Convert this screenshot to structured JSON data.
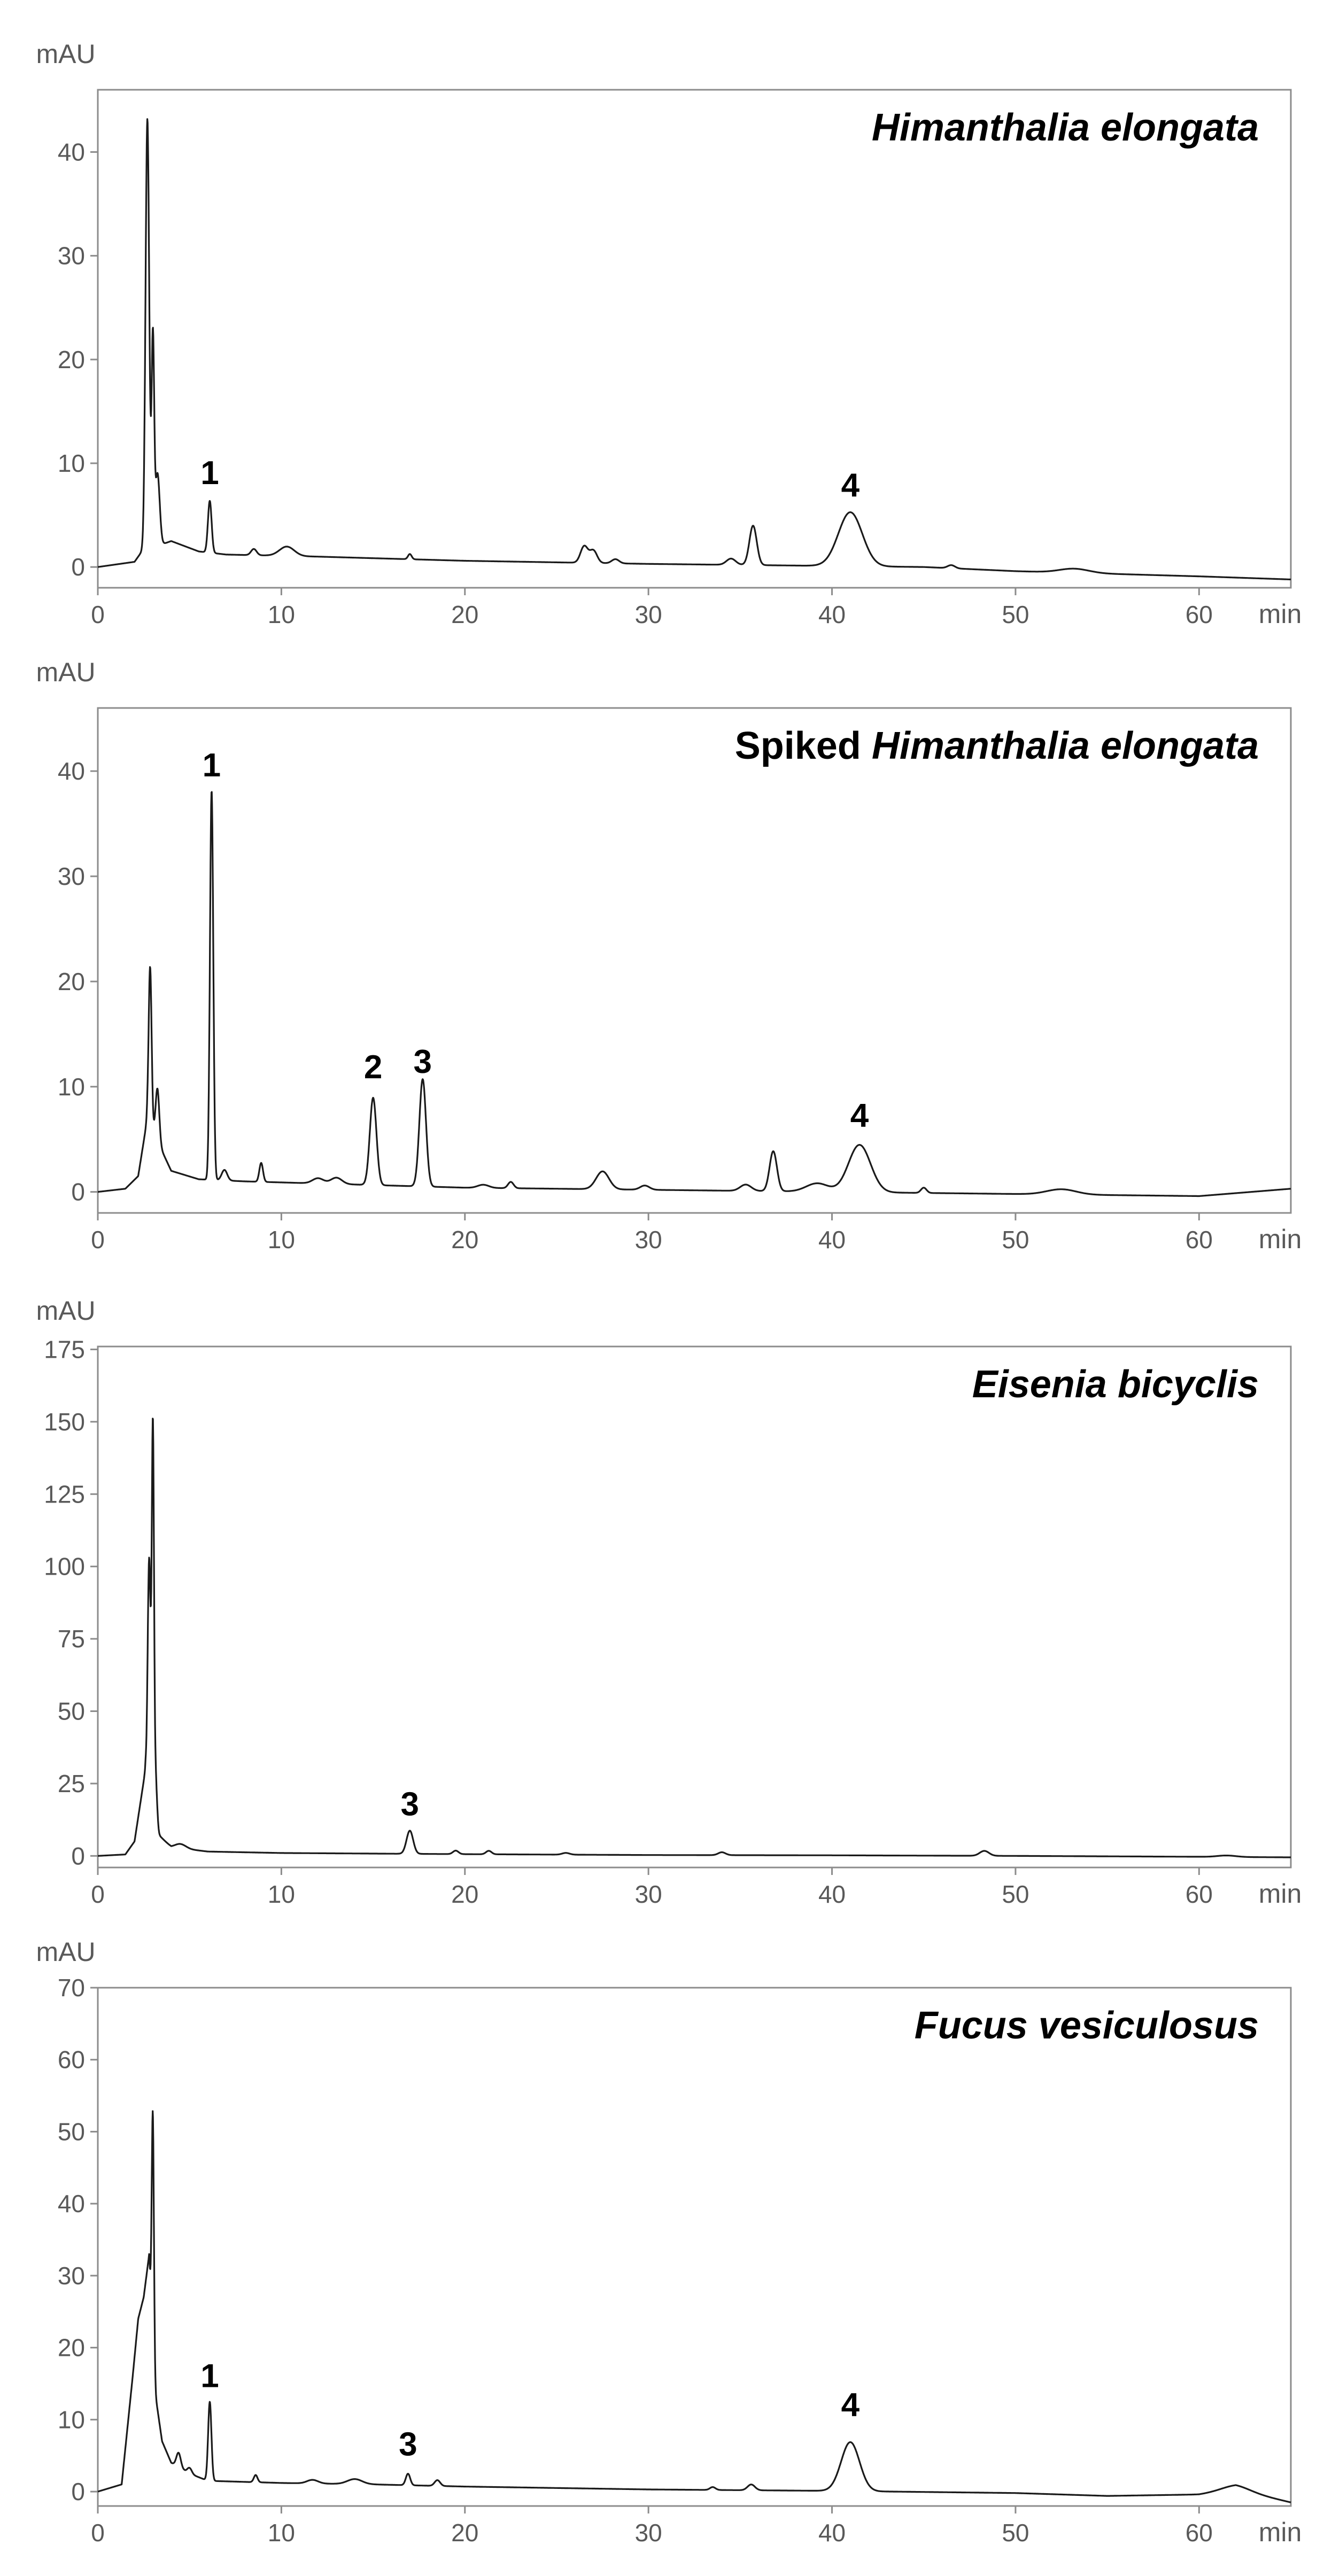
{
  "chart_data": [
    {
      "type": "line",
      "title_parts": [
        {
          "text": "Himanthalia",
          "italic": true
        },
        {
          "text": "elongata",
          "italic": true
        }
      ],
      "ylabel": "mAU",
      "xlabel": "min",
      "xlim": [
        0,
        65
      ],
      "ylim": [
        -2,
        46
      ],
      "xticks": [
        0,
        10,
        20,
        30,
        40,
        50,
        60
      ],
      "yticks": [
        0,
        10,
        20,
        30,
        40
      ],
      "baseline": [
        [
          0,
          0
        ],
        [
          2,
          0.5
        ],
        [
          2.4,
          1.5
        ],
        [
          4,
          2.5
        ],
        [
          5.5,
          1.5
        ],
        [
          7,
          1.2
        ],
        [
          12,
          1.0
        ],
        [
          20,
          0.6
        ],
        [
          30,
          0.3
        ],
        [
          40,
          0.1
        ],
        [
          45,
          0
        ],
        [
          50,
          -0.4
        ],
        [
          60,
          -0.9
        ],
        [
          65,
          -1.2
        ]
      ],
      "peaks": [
        {
          "x": 2.7,
          "h": 41.5,
          "w": 0.1
        },
        {
          "x": 3.0,
          "h": 20,
          "w": 0.07
        },
        {
          "x": 3.25,
          "h": 7,
          "w": 0.12
        },
        {
          "x": 6.1,
          "h": 5,
          "w": 0.1
        },
        {
          "x": 8.5,
          "h": 0.6,
          "w": 0.15
        },
        {
          "x": 10.3,
          "h": 0.9,
          "w": 0.4
        },
        {
          "x": 17.0,
          "h": 0.5,
          "w": 0.1
        },
        {
          "x": 26.5,
          "h": 1.6,
          "w": 0.2
        },
        {
          "x": 27.0,
          "h": 1.2,
          "w": 0.2
        },
        {
          "x": 28.2,
          "h": 0.4,
          "w": 0.2
        },
        {
          "x": 34.5,
          "h": 0.6,
          "w": 0.25
        },
        {
          "x": 35.7,
          "h": 3.8,
          "w": 0.2
        },
        {
          "x": 41.0,
          "h": 5.2,
          "w": 0.65
        },
        {
          "x": 46.5,
          "h": 0.3,
          "w": 0.2
        },
        {
          "x": 53.2,
          "h": 0.4,
          "w": 0.8
        }
      ],
      "peak_labels": [
        {
          "text": "1",
          "x": 6.1,
          "y": 8.0
        },
        {
          "text": "4",
          "x": 41.0,
          "y": 6.8
        }
      ]
    },
    {
      "type": "line",
      "title_parts": [
        {
          "text": "Spiked",
          "italic": false
        },
        {
          "text": "Himanthalia",
          "italic": true
        },
        {
          "text": "elongata",
          "italic": true
        }
      ],
      "ylabel": "mAU",
      "xlabel": "min",
      "xlim": [
        0,
        65
      ],
      "ylim": [
        -2,
        46
      ],
      "xticks": [
        0,
        10,
        20,
        30,
        40,
        50,
        60
      ],
      "yticks": [
        0,
        10,
        20,
        30,
        40
      ],
      "baseline": [
        [
          0,
          0
        ],
        [
          1.5,
          0.3
        ],
        [
          2.2,
          1.5
        ],
        [
          2.7,
          7
        ],
        [
          3.2,
          5
        ],
        [
          4,
          2
        ],
        [
          5.5,
          1.2
        ],
        [
          8,
          1.0
        ],
        [
          12,
          0.8
        ],
        [
          20,
          0.4
        ],
        [
          30,
          0.2
        ],
        [
          40,
          0
        ],
        [
          50,
          -0.2
        ],
        [
          60,
          -0.4
        ],
        [
          65,
          0.3
        ]
      ],
      "peaks": [
        {
          "x": 2.85,
          "h": 15,
          "w": 0.08
        },
        {
          "x": 3.25,
          "h": 5,
          "w": 0.1
        },
        {
          "x": 6.2,
          "h": 37,
          "w": 0.09
        },
        {
          "x": 6.9,
          "h": 1.0,
          "w": 0.15
        },
        {
          "x": 8.9,
          "h": 1.8,
          "w": 0.1
        },
        {
          "x": 12.0,
          "h": 0.5,
          "w": 0.3
        },
        {
          "x": 13.0,
          "h": 0.6,
          "w": 0.3
        },
        {
          "x": 15.0,
          "h": 8.3,
          "w": 0.18
        },
        {
          "x": 17.7,
          "h": 10.2,
          "w": 0.18
        },
        {
          "x": 21.0,
          "h": 0.3,
          "w": 0.3
        },
        {
          "x": 22.5,
          "h": 0.6,
          "w": 0.15
        },
        {
          "x": 27.5,
          "h": 1.7,
          "w": 0.35
        },
        {
          "x": 29.8,
          "h": 0.4,
          "w": 0.25
        },
        {
          "x": 35.3,
          "h": 0.6,
          "w": 0.3
        },
        {
          "x": 36.8,
          "h": 3.8,
          "w": 0.2
        },
        {
          "x": 39.2,
          "h": 0.8,
          "w": 0.6
        },
        {
          "x": 41.5,
          "h": 4.5,
          "w": 0.6
        },
        {
          "x": 45.0,
          "h": 0.5,
          "w": 0.15
        },
        {
          "x": 52.5,
          "h": 0.5,
          "w": 0.8
        }
      ],
      "peak_labels": [
        {
          "text": "1",
          "x": 6.2,
          "y": 39.5
        },
        {
          "text": "2",
          "x": 15.0,
          "y": 10.8
        },
        {
          "text": "3",
          "x": 17.7,
          "y": 11.3
        },
        {
          "text": "4",
          "x": 41.5,
          "y": 6.2
        }
      ]
    },
    {
      "type": "line",
      "title_parts": [
        {
          "text": "Eisenia",
          "italic": true
        },
        {
          "text": "bicyclis",
          "italic": true
        }
      ],
      "ylabel": "mAU",
      "xlabel": "min",
      "xlim": [
        0,
        65
      ],
      "ylim": [
        -4,
        176
      ],
      "xticks": [
        0,
        10,
        20,
        30,
        40,
        50,
        60
      ],
      "yticks": [
        0,
        25,
        50,
        75,
        100,
        125,
        150,
        175
      ],
      "baseline": [
        [
          0,
          0
        ],
        [
          1.5,
          0.5
        ],
        [
          2.0,
          5
        ],
        [
          2.6,
          30
        ],
        [
          3.2,
          8
        ],
        [
          4,
          3
        ],
        [
          6,
          1.5
        ],
        [
          10,
          1.0
        ],
        [
          20,
          0.6
        ],
        [
          30,
          0.3
        ],
        [
          40,
          0.2
        ],
        [
          50,
          0
        ],
        [
          60,
          -0.3
        ],
        [
          65,
          -0.5
        ]
      ],
      "peaks": [
        {
          "x": 2.8,
          "h": 80,
          "w": 0.08
        },
        {
          "x": 3.0,
          "h": 130,
          "w": 0.06
        },
        {
          "x": 3.15,
          "h": 18,
          "w": 0.08
        },
        {
          "x": 4.5,
          "h": 1.5,
          "w": 0.3
        },
        {
          "x": 17.0,
          "h": 8,
          "w": 0.18
        },
        {
          "x": 19.5,
          "h": 1.2,
          "w": 0.15
        },
        {
          "x": 21.3,
          "h": 1.2,
          "w": 0.15
        },
        {
          "x": 25.5,
          "h": 0.6,
          "w": 0.2
        },
        {
          "x": 34.0,
          "h": 1.0,
          "w": 0.2
        },
        {
          "x": 48.3,
          "h": 1.7,
          "w": 0.25
        },
        {
          "x": 61.5,
          "h": 0.5,
          "w": 0.5
        }
      ],
      "peak_labels": [
        {
          "text": "3",
          "x": 17.0,
          "y": 14
        }
      ]
    },
    {
      "type": "line",
      "title_parts": [
        {
          "text": "Fucus",
          "italic": true
        },
        {
          "text": "vesiculosus",
          "italic": true
        }
      ],
      "ylabel": "mAU",
      "xlabel": "min",
      "xlim": [
        0,
        65
      ],
      "ylim": [
        -2,
        70
      ],
      "xticks": [
        0,
        10,
        20,
        30,
        40,
        50,
        60
      ],
      "yticks": [
        0,
        10,
        20,
        30,
        40,
        50,
        60,
        70
      ],
      "baseline": [
        [
          0,
          0
        ],
        [
          1.3,
          1
        ],
        [
          1.9,
          16
        ],
        [
          2.2,
          24
        ],
        [
          2.5,
          27
        ],
        [
          2.8,
          33
        ],
        [
          3.05,
          15
        ],
        [
          3.5,
          7
        ],
        [
          4,
          4
        ],
        [
          5,
          2.5
        ],
        [
          6,
          1.5
        ],
        [
          10,
          1.2
        ],
        [
          15,
          1.0
        ],
        [
          20,
          0.7
        ],
        [
          30,
          0.3
        ],
        [
          40,
          0.1
        ],
        [
          50,
          -0.2
        ],
        [
          55,
          -0.6
        ],
        [
          60,
          -0.4
        ],
        [
          62,
          0.3
        ],
        [
          65,
          -1.5
        ]
      ],
      "peaks": [
        {
          "x": 3.0,
          "h": 34,
          "w": 0.06
        },
        {
          "x": 4.4,
          "h": 2.0,
          "w": 0.12
        },
        {
          "x": 5.0,
          "h": 0.8,
          "w": 0.12
        },
        {
          "x": 6.1,
          "h": 11,
          "w": 0.09
        },
        {
          "x": 8.6,
          "h": 1.0,
          "w": 0.1
        },
        {
          "x": 11.7,
          "h": 0.5,
          "w": 0.3
        },
        {
          "x": 14.0,
          "h": 0.7,
          "w": 0.4
        },
        {
          "x": 16.9,
          "h": 1.6,
          "w": 0.12
        },
        {
          "x": 18.5,
          "h": 0.8,
          "w": 0.15
        },
        {
          "x": 33.5,
          "h": 0.4,
          "w": 0.15
        },
        {
          "x": 35.6,
          "h": 0.8,
          "w": 0.2
        },
        {
          "x": 41.0,
          "h": 6.8,
          "w": 0.5
        },
        {
          "x": 62.0,
          "h": 0.6,
          "w": 0.8
        }
      ],
      "peak_labels": [
        {
          "text": "1",
          "x": 6.1,
          "y": 14.5
        },
        {
          "text": "3",
          "x": 16.9,
          "y": 5
        },
        {
          "text": "4",
          "x": 41.0,
          "y": 10.5
        }
      ]
    }
  ]
}
